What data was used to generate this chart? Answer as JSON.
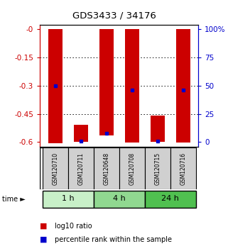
{
  "title": "GDS3433 / 34176",
  "samples": [
    "GSM120710",
    "GSM120711",
    "GSM120648",
    "GSM120708",
    "GSM120715",
    "GSM120716"
  ],
  "groups": [
    {
      "label": "1 h",
      "color": "#c8f0c8",
      "indices": [
        0,
        1
      ]
    },
    {
      "label": "4 h",
      "color": "#90d890",
      "indices": [
        2,
        3
      ]
    },
    {
      "label": "24 h",
      "color": "#50c050",
      "indices": [
        4,
        5
      ]
    }
  ],
  "bar_tops": [
    0.0,
    -0.51,
    0.0,
    0.0,
    -0.46,
    0.0
  ],
  "bar_bottoms": [
    -0.605,
    -0.598,
    -0.565,
    -0.602,
    -0.598,
    -0.602
  ],
  "percentile_values": [
    -0.3,
    -0.596,
    -0.555,
    -0.325,
    -0.596,
    -0.325
  ],
  "yticks_left": [
    0,
    -0.15,
    -0.3,
    -0.45,
    -0.6
  ],
  "yticks_left_labels": [
    "-0",
    "-0.15",
    "-0.3",
    "-0.45",
    "-0.6"
  ],
  "yticks_right_vals": [
    0,
    -0.15,
    -0.3,
    -0.45,
    -0.6
  ],
  "yticks_right_labels": [
    "100%",
    "75",
    "50",
    "25",
    "0"
  ],
  "bar_color": "#cc0000",
  "dot_color": "#0000cc",
  "bar_width": 0.55,
  "left_axis_color": "#cc0000",
  "right_axis_color": "#0000cc",
  "sample_box_color": "#d0d0d0",
  "legend_items": [
    "log10 ratio",
    "percentile rank within the sample"
  ]
}
